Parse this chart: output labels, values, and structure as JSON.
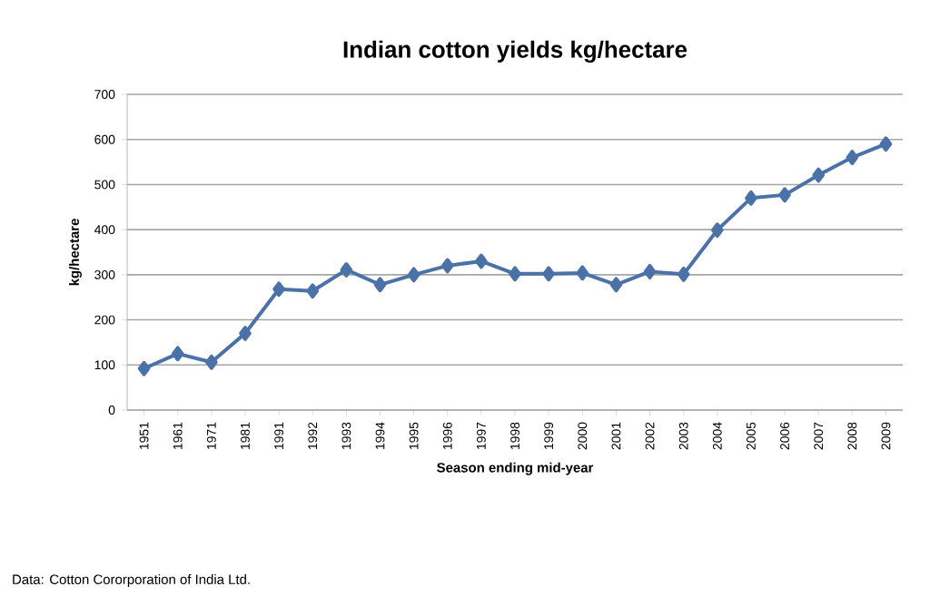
{
  "chart_data": {
    "type": "line",
    "title": "Indian cotton yields kg/hectare",
    "xlabel": "Season ending mid-year",
    "ylabel": "kg/hectare",
    "categories": [
      "1951",
      "1961",
      "1971",
      "1981",
      "1991",
      "1992",
      "1993",
      "1994",
      "1995",
      "1996",
      "1997",
      "1998",
      "1999",
      "2000",
      "2001",
      "2002",
      "2003",
      "2004",
      "2005",
      "2006",
      "2007",
      "2008",
      "2009"
    ],
    "series": [
      {
        "color": "#4a72a8",
        "values": [
          92,
          125,
          106,
          170,
          268,
          264,
          311,
          278,
          300,
          320,
          330,
          302,
          302,
          304,
          278,
          307,
          301,
          399,
          470,
          477,
          521,
          560,
          590
        ]
      }
    ],
    "ylim": [
      0,
      700
    ],
    "yticks": [
      0,
      100,
      200,
      300,
      400,
      500,
      600,
      700
    ],
    "grid": "y",
    "marker": "diamond",
    "line_style": "solid",
    "annotations": [
      "Data: Cotton Cororporation of India Ltd."
    ]
  }
}
